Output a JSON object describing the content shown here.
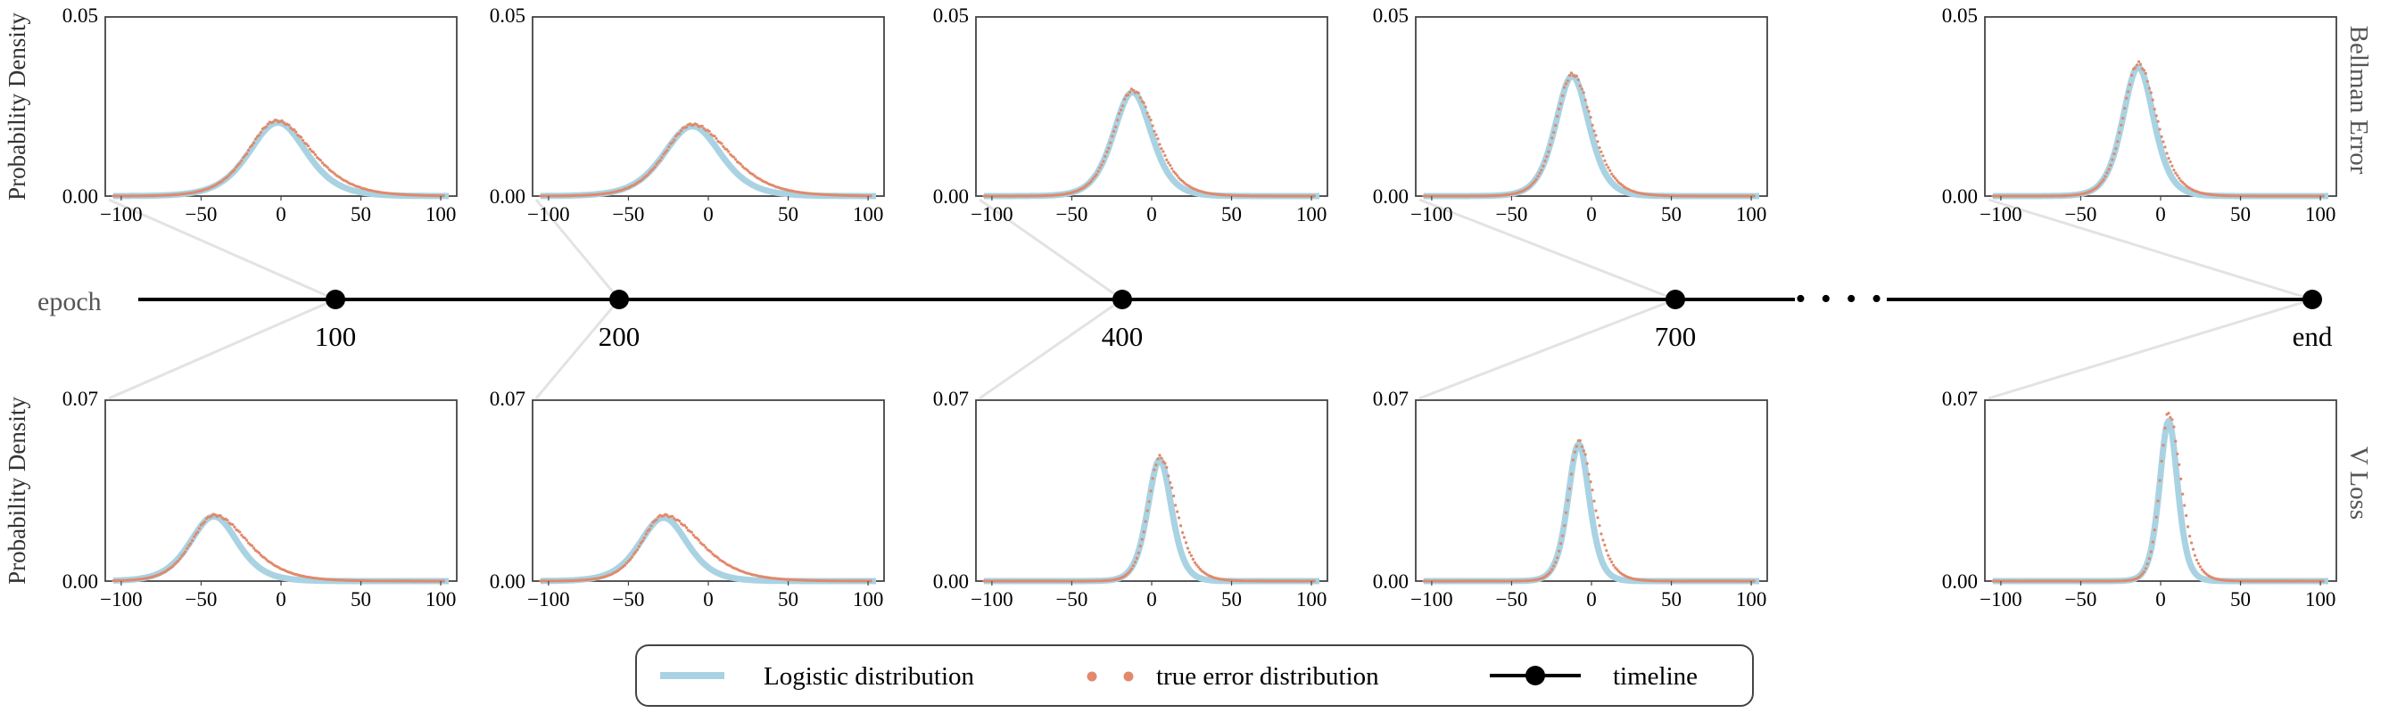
{
  "figure": {
    "epoch_label": "epoch",
    "y_axis_label": "Probability Density",
    "timeline_epochs": [
      "100",
      "200",
      "400",
      "700",
      "end"
    ],
    "ellipsis": "• • • •",
    "legend": [
      {
        "label": "Logistic distribution",
        "marker": "line",
        "color": "#a9d3e3"
      },
      {
        "label": "true error distribution",
        "marker": "dots",
        "color": "#e1896b"
      },
      {
        "label": "timeline",
        "marker": "line-dot",
        "color": "#000000"
      }
    ]
  },
  "chart_data": [
    {
      "type": "line",
      "row": "Bellman Error",
      "epoch": "100",
      "xlim": [
        -110,
        110
      ],
      "ylim": [
        0,
        0.05
      ],
      "yticks": [
        "0.00",
        "0.05"
      ],
      "xticks": [
        "−100",
        "−50",
        "0",
        "50",
        "100"
      ],
      "logistic": {
        "mu": -2,
        "s": 12,
        "peak": 0.0205
      },
      "true_error": {
        "mu": -3,
        "s": 12.5,
        "peak": 0.021,
        "skew": 0.2
      }
    },
    {
      "type": "line",
      "row": "Bellman Error",
      "epoch": "200",
      "xlim": [
        -110,
        110
      ],
      "ylim": [
        0,
        0.05
      ],
      "yticks": [
        "0.00",
        "0.05"
      ],
      "xticks": [
        "−100",
        "−50",
        "0",
        "50",
        "100"
      ],
      "logistic": {
        "mu": -10,
        "s": 12,
        "peak": 0.0195
      },
      "true_error": {
        "mu": -10,
        "s": 12.5,
        "peak": 0.02,
        "skew": 0.25
      }
    },
    {
      "type": "line",
      "row": "Bellman Error",
      "epoch": "400",
      "xlim": [
        -110,
        110
      ],
      "ylim": [
        0,
        0.05
      ],
      "yticks": [
        "0.00",
        "0.05"
      ],
      "xticks": [
        "−100",
        "−50",
        "0",
        "50",
        "100"
      ],
      "logistic": {
        "mu": -12,
        "s": 8,
        "peak": 0.029
      },
      "true_error": {
        "mu": -12,
        "s": 8.3,
        "peak": 0.0295,
        "skew": 0.15
      }
    },
    {
      "type": "line",
      "row": "Bellman Error",
      "epoch": "700",
      "xlim": [
        -110,
        110
      ],
      "ylim": [
        0,
        0.05
      ],
      "yticks": [
        "0.00",
        "0.05"
      ],
      "xticks": [
        "−100",
        "−50",
        "0",
        "50",
        "100"
      ],
      "logistic": {
        "mu": -12,
        "s": 7,
        "peak": 0.0335
      },
      "true_error": {
        "mu": -12,
        "s": 7.2,
        "peak": 0.034,
        "skew": 0.15
      }
    },
    {
      "type": "line",
      "row": "Bellman Error",
      "epoch": "end",
      "xlim": [
        -110,
        110
      ],
      "ylim": [
        0,
        0.05
      ],
      "yticks": [
        "0.00",
        "0.05"
      ],
      "xticks": [
        "−100",
        "−50",
        "0",
        "50",
        "100"
      ],
      "logistic": {
        "mu": -14,
        "s": 6.5,
        "peak": 0.036
      },
      "true_error": {
        "mu": -14,
        "s": 6.7,
        "peak": 0.037,
        "skew": 0.15
      }
    },
    {
      "type": "line",
      "row": "V Loss",
      "epoch": "100",
      "xlim": [
        -110,
        110
      ],
      "ylim": [
        0,
        0.07
      ],
      "yticks": [
        "0.00",
        "0.07"
      ],
      "xticks": [
        "−100",
        "−50",
        "0",
        "50",
        "100"
      ],
      "logistic": {
        "mu": -42,
        "s": 10,
        "peak": 0.025
      },
      "true_error": {
        "mu": -42,
        "s": 10.5,
        "peak": 0.0255,
        "skew": 0.35
      }
    },
    {
      "type": "line",
      "row": "V Loss",
      "epoch": "200",
      "xlim": [
        -110,
        110
      ],
      "ylim": [
        0,
        0.07
      ],
      "yticks": [
        "0.00",
        "0.07"
      ],
      "xticks": [
        "−100",
        "−50",
        "0",
        "50",
        "100"
      ],
      "logistic": {
        "mu": -28,
        "s": 10,
        "peak": 0.0245
      },
      "true_error": {
        "mu": -28,
        "s": 10.5,
        "peak": 0.0255,
        "skew": 0.45
      }
    },
    {
      "type": "line",
      "row": "V Loss",
      "epoch": "400",
      "xlim": [
        -110,
        110
      ],
      "ylim": [
        0,
        0.07
      ],
      "yticks": [
        "0.00",
        "0.07"
      ],
      "xticks": [
        "−100",
        "−50",
        "0",
        "50",
        "100"
      ],
      "logistic": {
        "mu": 5,
        "s": 5,
        "peak": 0.047
      },
      "true_error": {
        "mu": 5,
        "s": 5.3,
        "peak": 0.048,
        "skew": 0.3
      }
    },
    {
      "type": "line",
      "row": "V Loss",
      "epoch": "700",
      "xlim": [
        -110,
        110
      ],
      "ylim": [
        0,
        0.07
      ],
      "yticks": [
        "0.00",
        "0.07"
      ],
      "xticks": [
        "−100",
        "−50",
        "0",
        "50",
        "100"
      ],
      "logistic": {
        "mu": -8,
        "s": 4.5,
        "peak": 0.053
      },
      "true_error": {
        "mu": -8,
        "s": 4.8,
        "peak": 0.054,
        "skew": 0.3
      }
    },
    {
      "type": "line",
      "row": "V Loss",
      "epoch": "end",
      "xlim": [
        -110,
        110
      ],
      "ylim": [
        0,
        0.07
      ],
      "yticks": [
        "0.00",
        "0.07"
      ],
      "xticks": [
        "−100",
        "−50",
        "0",
        "50",
        "100"
      ],
      "logistic": {
        "mu": 5,
        "s": 3.8,
        "peak": 0.062
      },
      "true_error": {
        "mu": 5,
        "s": 4,
        "peak": 0.065,
        "skew": 0.3
      }
    }
  ]
}
